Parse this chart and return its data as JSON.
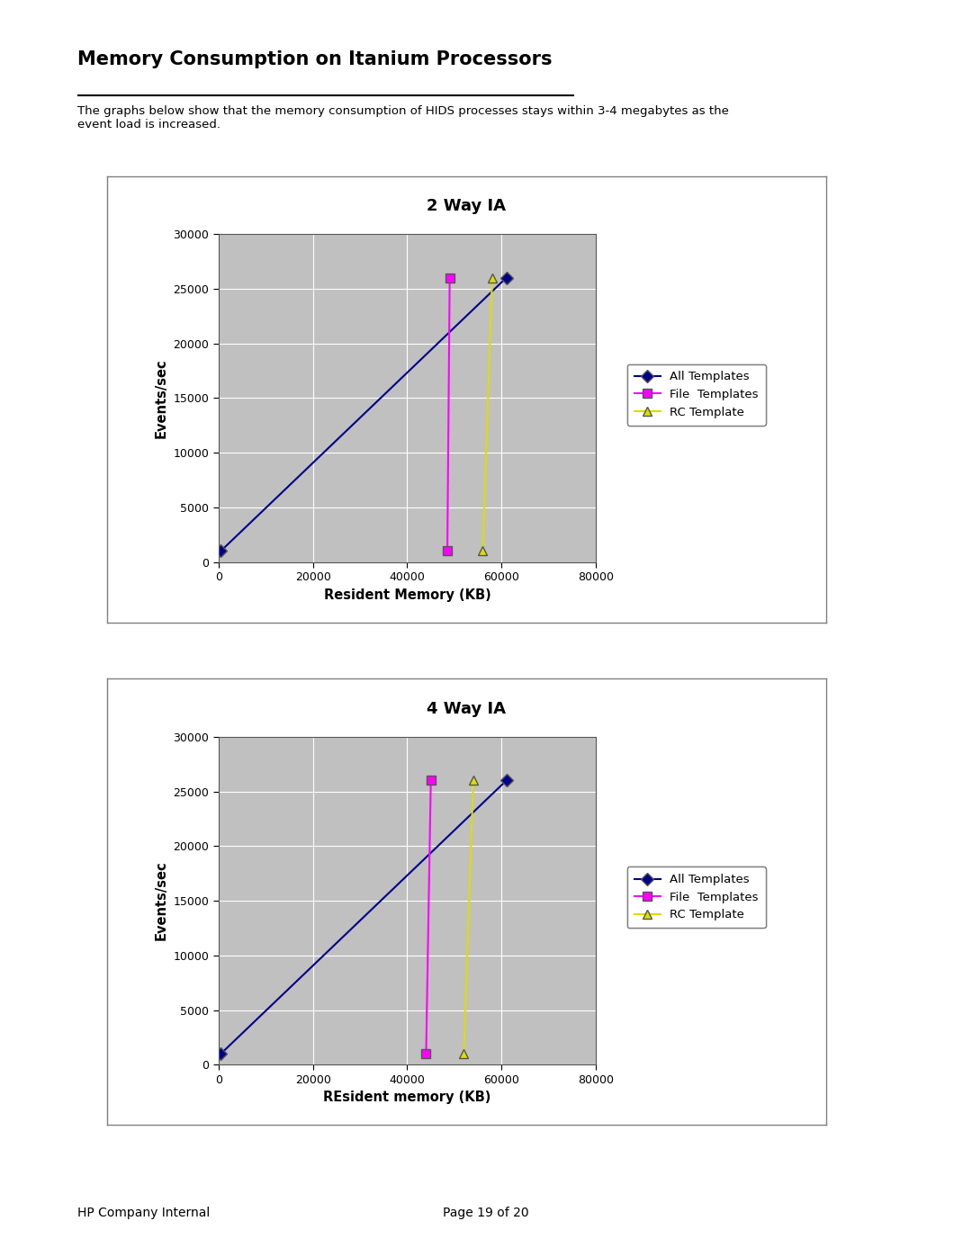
{
  "title": "Memory Consumption on Itanium Processors",
  "subtitle": "The graphs below show that the memory consumption of HIDS processes stays within 3-4 megabytes as the\nevent load is increased.",
  "chart1_title": "2 Way IA",
  "chart2_title": "4 Way IA",
  "chart1_xlabel": "Resident Memory (KB)",
  "chart2_xlabel": "REsident memory (KB)",
  "ylabel": "Events/sec",
  "xlim": [
    0,
    80000
  ],
  "ylim": [
    0,
    30000
  ],
  "xticks": [
    0,
    20000,
    40000,
    60000,
    80000
  ],
  "yticks": [
    0,
    5000,
    10000,
    15000,
    20000,
    25000,
    30000
  ],
  "chart1_series": {
    "all_templates": {
      "x": [
        500,
        61000
      ],
      "y": [
        1000,
        26000
      ],
      "color": "#00008B",
      "marker": "D",
      "label": "All Templates"
    },
    "file_templates": {
      "x": [
        48500,
        49000
      ],
      "y": [
        1000,
        26000
      ],
      "color": "#FF00FF",
      "marker": "s",
      "label": "File  Templates"
    },
    "rc_template": {
      "x": [
        56000,
        58000
      ],
      "y": [
        1000,
        26000
      ],
      "color": "#DDDD00",
      "marker": "^",
      "label": "RC Template"
    }
  },
  "chart2_series": {
    "all_templates": {
      "x": [
        500,
        61000
      ],
      "y": [
        1000,
        26000
      ],
      "color": "#00008B",
      "marker": "D",
      "label": "All Templates"
    },
    "file_templates": {
      "x": [
        44000,
        45000
      ],
      "y": [
        1000,
        26000
      ],
      "color": "#FF00FF",
      "marker": "s",
      "label": "File  Templates"
    },
    "rc_template": {
      "x": [
        52000,
        54000
      ],
      "y": [
        1000,
        26000
      ],
      "color": "#DDDD00",
      "marker": "^",
      "label": "RC Template"
    }
  },
  "plot_area_color": "#C0C0C0",
  "background_color": "#FFFFFF",
  "border_color": "#808080",
  "footer_left": "HP Company Internal",
  "footer_center": "Page 19 of 20"
}
